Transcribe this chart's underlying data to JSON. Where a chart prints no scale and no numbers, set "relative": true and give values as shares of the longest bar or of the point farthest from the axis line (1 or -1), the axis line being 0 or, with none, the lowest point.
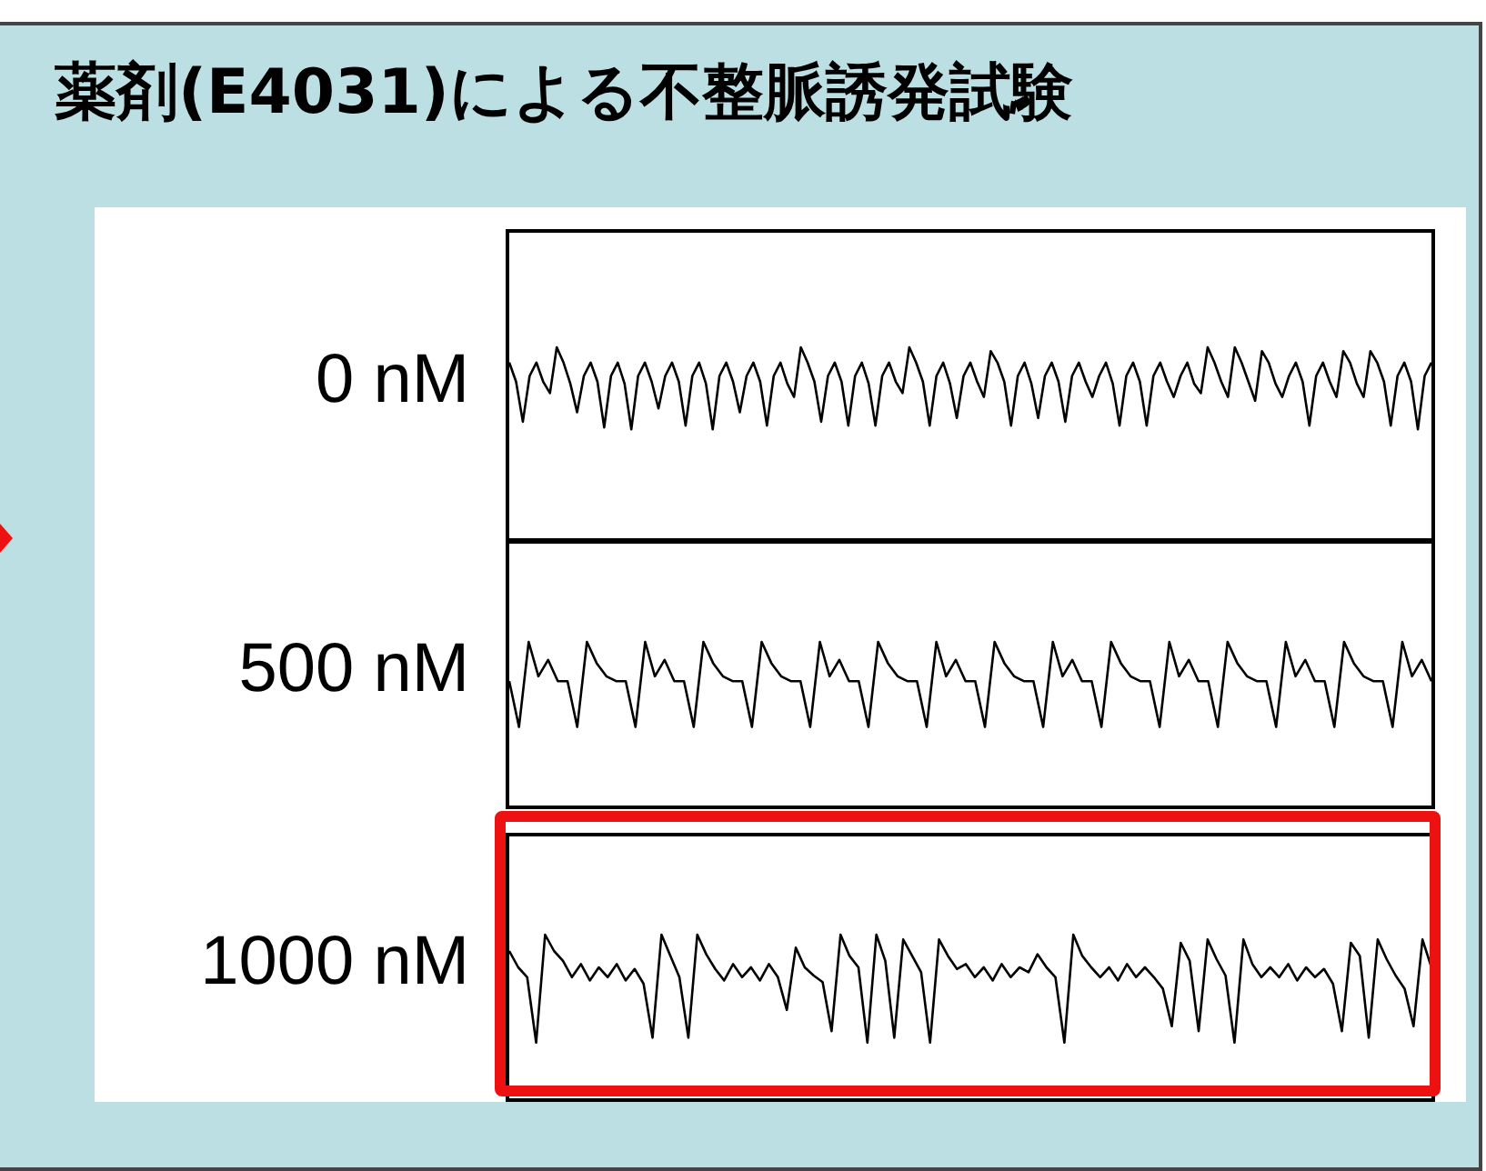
{
  "chart_data": [
    {
      "type": "line",
      "title": "薬剤(E4031)による不整脈誘発試験",
      "relative": true,
      "categories": [
        null,
        null,
        null,
        null,
        null,
        null,
        null,
        null,
        null,
        null,
        null,
        null,
        null,
        null,
        null,
        null,
        null,
        null,
        null,
        null,
        null,
        null,
        null,
        null,
        null,
        null,
        null,
        null,
        null,
        null,
        null,
        null,
        null,
        null,
        null,
        null,
        null,
        null,
        null,
        null,
        null,
        null,
        null,
        null,
        null,
        null,
        null,
        null,
        null,
        null,
        null,
        null,
        null,
        null,
        null,
        null,
        null,
        null,
        null,
        null,
        null,
        null,
        null,
        null,
        null,
        null,
        null,
        null,
        null,
        null,
        null,
        null,
        null,
        null,
        null,
        null,
        null,
        null,
        null,
        null,
        null,
        null,
        null,
        null,
        null,
        null,
        null,
        null,
        null,
        null,
        null,
        null,
        null,
        null,
        null,
        null,
        null,
        null,
        null,
        null,
        null,
        null,
        null,
        null,
        null,
        null,
        null,
        null,
        null,
        null,
        null,
        null,
        null,
        null,
        null,
        null,
        null,
        null,
        null,
        null,
        null,
        null,
        null,
        null,
        null,
        null,
        null,
        null,
        null,
        null,
        null,
        null,
        null,
        null,
        null,
        null,
        null
      ],
      "series": [
        {
          "name": "0 nM",
          "color": "#000000",
          "values": [
            0.92,
            0.82,
            0.61,
            0.85,
            0.92,
            0.82,
            0.76,
            1,
            0.92,
            0.81,
            0.66,
            0.85,
            0.92,
            0.82,
            0.58,
            0.85,
            0.92,
            0.81,
            0.57,
            0.85,
            0.92,
            0.82,
            0.68,
            0.85,
            0.92,
            0.82,
            0.59,
            0.85,
            0.92,
            0.81,
            0.57,
            0.85,
            0.92,
            0.82,
            0.66,
            0.85,
            0.92,
            0.82,
            0.59,
            0.85,
            0.92,
            0.81,
            0.74,
            1,
            0.92,
            0.82,
            0.61,
            0.85,
            0.92,
            0.82,
            0.59,
            0.85,
            0.92,
            0.81,
            0.59,
            0.85,
            0.92,
            0.82,
            0.76,
            1,
            0.92,
            0.82,
            0.59,
            0.85,
            0.92,
            0.81,
            0.63,
            0.85,
            0.92,
            0.82,
            0.74,
            0.98,
            0.92,
            0.82,
            0.59,
            0.85,
            0.92,
            0.81,
            0.63,
            0.85,
            0.92,
            0.82,
            0.61,
            0.85,
            0.92,
            0.82,
            0.74,
            0.85,
            0.92,
            0.81,
            0.59,
            0.85,
            0.92,
            0.82,
            0.59,
            0.85,
            0.92,
            0.82,
            0.74,
            0.85,
            0.92,
            0.81,
            0.76,
            1,
            0.92,
            0.82,
            0.74,
            1,
            0.92,
            0.82,
            0.72,
            0.98,
            0.92,
            0.81,
            0.74,
            0.85,
            0.92,
            0.82,
            0.59,
            0.85,
            0.92,
            0.82,
            0.74,
            0.98,
            0.92,
            0.81,
            0.74,
            0.98,
            0.92,
            0.82,
            0.59,
            0.85,
            0.92,
            0.82,
            0.57,
            0.85,
            0.92
          ]
        }
      ]
    },
    {
      "type": "line",
      "relative": true,
      "categories": [
        null,
        null,
        null,
        null,
        null,
        null,
        null,
        null,
        null,
        null,
        null,
        null,
        null,
        null,
        null,
        null,
        null,
        null,
        null,
        null,
        null,
        null,
        null,
        null,
        null,
        null,
        null,
        null,
        null,
        null,
        null,
        null,
        null,
        null,
        null,
        null,
        null,
        null,
        null,
        null,
        null,
        null,
        null,
        null,
        null,
        null,
        null,
        null,
        null,
        null,
        null,
        null,
        null,
        null,
        null,
        null,
        null,
        null,
        null,
        null,
        null,
        null,
        null,
        null,
        null,
        null,
        null,
        null,
        null,
        null,
        null,
        null,
        null,
        null,
        null,
        null,
        null,
        null,
        null,
        null,
        null,
        null,
        null,
        null,
        null,
        null,
        null,
        null,
        null,
        null,
        null,
        null,
        null,
        null,
        null,
        null
      ],
      "series": [
        {
          "name": "500 nM",
          "color": "#000000",
          "values": [
            0.76,
            0.48,
            1,
            0.79,
            0.89,
            0.76,
            0.76,
            0.48,
            1,
            0.87,
            0.79,
            0.76,
            0.76,
            0.48,
            1,
            0.79,
            0.89,
            0.76,
            0.76,
            0.48,
            1,
            0.87,
            0.79,
            0.76,
            0.76,
            0.48,
            1,
            0.87,
            0.79,
            0.76,
            0.76,
            0.48,
            1,
            0.79,
            0.89,
            0.76,
            0.76,
            0.48,
            1,
            0.87,
            0.79,
            0.76,
            0.76,
            0.48,
            1,
            0.79,
            0.89,
            0.76,
            0.76,
            0.48,
            1,
            0.87,
            0.79,
            0.76,
            0.76,
            0.48,
            1,
            0.79,
            0.89,
            0.76,
            0.76,
            0.48,
            1,
            0.87,
            0.79,
            0.76,
            0.76,
            0.48,
            1,
            0.79,
            0.89,
            0.76,
            0.76,
            0.48,
            1,
            0.87,
            0.79,
            0.76,
            0.76,
            0.48,
            1,
            0.79,
            0.89,
            0.76,
            0.76,
            0.48,
            1,
            0.87,
            0.79,
            0.76,
            0.76,
            0.48,
            1,
            0.79,
            0.89,
            0.76
          ]
        }
      ]
    },
    {
      "type": "line",
      "relative": true,
      "categories": [
        null,
        null,
        null,
        null,
        null,
        null,
        null,
        null,
        null,
        null,
        null,
        null,
        null,
        null,
        null,
        null,
        null,
        null,
        null,
        null,
        null,
        null,
        null,
        null,
        null,
        null,
        null,
        null,
        null,
        null,
        null,
        null,
        null,
        null,
        null,
        null,
        null,
        null,
        null,
        null,
        null,
        null,
        null,
        null,
        null,
        null,
        null,
        null,
        null,
        null,
        null,
        null,
        null,
        null,
        null,
        null,
        null,
        null,
        null,
        null,
        null,
        null,
        null,
        null,
        null,
        null,
        null,
        null,
        null,
        null,
        null,
        null,
        null,
        null,
        null,
        null,
        null,
        null,
        null,
        null,
        null,
        null,
        null,
        null,
        null,
        null,
        null,
        null,
        null,
        null,
        null,
        null,
        null,
        null,
        null,
        null,
        null,
        null,
        null,
        null,
        null,
        null,
        null,
        null
      ],
      "series": [
        {
          "name": "1000 nM",
          "color": "#000000",
          "values": [
            0.9,
            0.8,
            0.74,
            0.34,
            1,
            0.9,
            0.84,
            0.74,
            0.82,
            0.72,
            0.8,
            0.74,
            0.82,
            0.72,
            0.79,
            0.7,
            0.37,
            1,
            0.87,
            0.74,
            0.37,
            1,
            0.88,
            0.79,
            0.72,
            0.82,
            0.74,
            0.8,
            0.72,
            0.82,
            0.74,
            0.54,
            0.92,
            0.8,
            0.75,
            0.71,
            0.41,
            1,
            0.87,
            0.8,
            0.34,
            1,
            0.84,
            0.37,
            0.97,
            0.87,
            0.77,
            0.34,
            0.97,
            0.87,
            0.79,
            0.82,
            0.74,
            0.8,
            0.72,
            0.82,
            0.74,
            0.8,
            0.77,
            0.88,
            0.8,
            0.74,
            0.34,
            1,
            0.87,
            0.8,
            0.74,
            0.8,
            0.72,
            0.82,
            0.74,
            0.8,
            0.74,
            0.67,
            0.44,
            0.95,
            0.84,
            0.41,
            0.97,
            0.85,
            0.75,
            0.34,
            0.97,
            0.82,
            0.74,
            0.8,
            0.74,
            0.82,
            0.72,
            0.8,
            0.74,
            0.79,
            0.7,
            0.41,
            0.95,
            0.87,
            0.37,
            0.97,
            0.85,
            0.75,
            0.67,
            0.44,
            0.97,
            0.8
          ]
        }
      ]
    }
  ]
}
